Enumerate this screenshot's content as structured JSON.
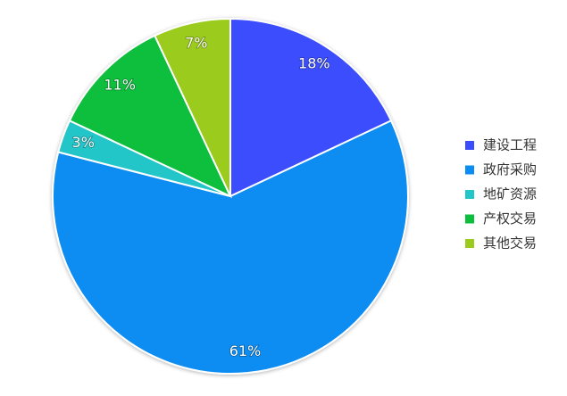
{
  "chart_data": {
    "type": "pie",
    "categories": [
      "建设工程",
      "政府采购",
      "地矿资源",
      "产权交易",
      "其他交易"
    ],
    "values": [
      18,
      61,
      3,
      11,
      7
    ],
    "value_labels": [
      "18%",
      "61%",
      "3%",
      "11%",
      "7%"
    ],
    "colors": [
      "#3a4dfc",
      "#0a8cf2",
      "#22c5c8",
      "#0bbf3d",
      "#9bcb1e"
    ],
    "legend": "right"
  }
}
